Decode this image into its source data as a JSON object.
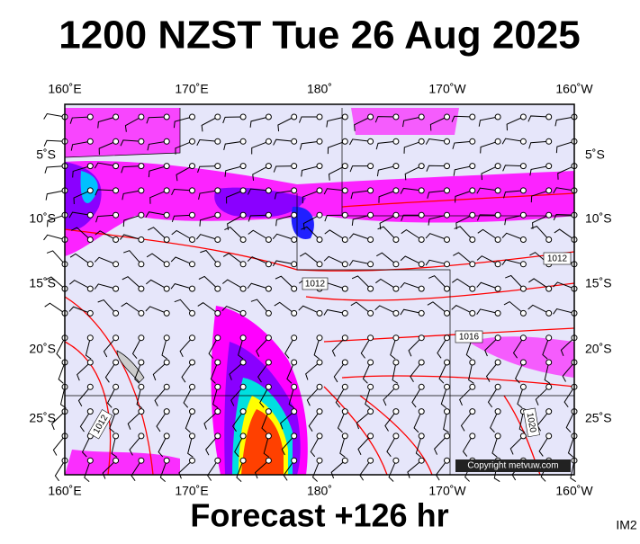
{
  "title": "1200 NZST Tue 26 Aug 2025",
  "top_axis": [
    "160˚E",
    "170˚E",
    "180˚",
    "170˚W",
    "160˚W"
  ],
  "bottom_axis": [
    "160˚E",
    "170˚E",
    "180˚",
    "170˚W",
    "160˚W"
  ],
  "left_axis": [
    "5˚S",
    "10˚S",
    "15˚S",
    "20˚S",
    "25˚S"
  ],
  "right_axis": [
    "5˚S",
    "10˚S",
    "15˚S",
    "20˚S",
    "25˚S"
  ],
  "isobar_labels": [
    "1012",
    "1012",
    "1016",
    "1012",
    "1020"
  ],
  "copyright": "Copyright metvuw.com",
  "footer": "Forecast +126 hr",
  "corner": "IM2"
}
